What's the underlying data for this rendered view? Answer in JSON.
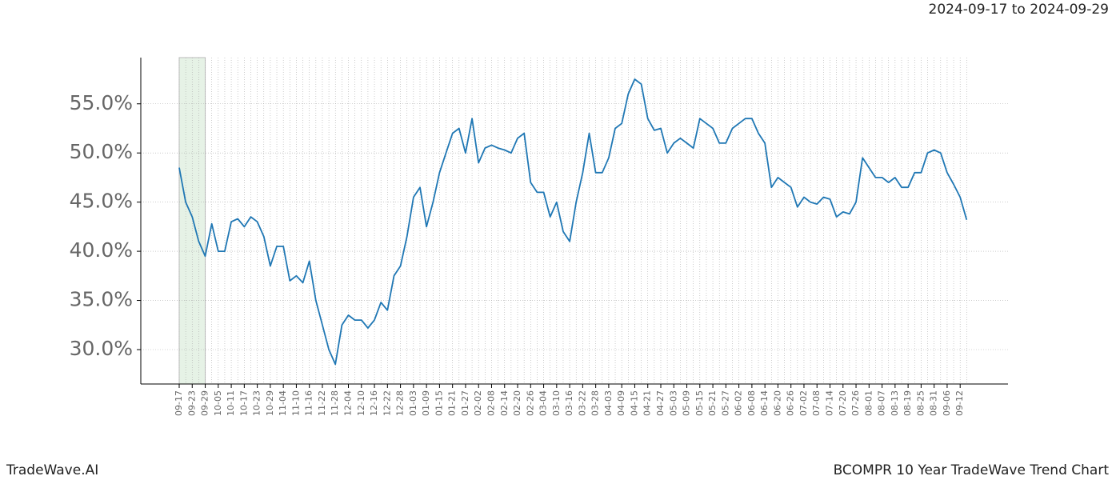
{
  "chart_data": {
    "type": "line",
    "title": "BCOMPR 10 Year TradeWave Trend Chart",
    "subtitle": "2024-09-17 to 2024-09-29",
    "brand": "TradeWave.AI",
    "categories": [
      "09-17",
      null,
      "09-23",
      null,
      "09-29",
      null,
      "10-05",
      null,
      "10-11",
      null,
      "10-17",
      null,
      "10-23",
      null,
      "10-29",
      null,
      "11-04",
      null,
      "11-10",
      null,
      "11-16",
      null,
      "11-22",
      null,
      "11-28",
      null,
      "12-04",
      null,
      "12-10",
      null,
      "12-16",
      null,
      "12-22",
      null,
      "12-28",
      null,
      "01-03",
      null,
      "01-09",
      null,
      "01-15",
      null,
      "01-21",
      null,
      "01-27",
      null,
      "02-02",
      null,
      "02-08",
      null,
      "02-14",
      null,
      "02-20",
      null,
      "02-26",
      null,
      "03-04",
      null,
      "03-10",
      null,
      "03-16",
      null,
      "03-22",
      null,
      "03-28",
      null,
      "04-03",
      null,
      "04-09",
      null,
      "04-15",
      null,
      "04-21",
      null,
      "04-27",
      null,
      "05-03",
      null,
      "05-09",
      null,
      "05-15",
      null,
      "05-21",
      null,
      "05-27",
      null,
      "06-02",
      null,
      "06-08",
      null,
      "06-14",
      null,
      "06-20",
      null,
      "06-26",
      null,
      "07-02",
      null,
      "07-08",
      null,
      "07-14",
      null,
      "07-20",
      null,
      "07-26",
      null,
      "08-01",
      null,
      "08-07",
      null,
      "08-13",
      null,
      "08-19",
      null,
      "08-25",
      null,
      "08-31",
      null,
      "09-06",
      null,
      "09-12",
      null
    ],
    "values": [
      48.5,
      45,
      43.5,
      41,
      39.5,
      42.8,
      40,
      40,
      43,
      43.3,
      42.5,
      43.5,
      43,
      41.5,
      38.5,
      40.5,
      40.5,
      37,
      37.5,
      36.8,
      39,
      35,
      32.5,
      30,
      28.5,
      32.5,
      33.5,
      33,
      33,
      32.2,
      33,
      34.8,
      34,
      37.5,
      38.5,
      41.5,
      45.5,
      46.5,
      42.5,
      45,
      48,
      50,
      52,
      52.5,
      50,
      53.5,
      49,
      50.5,
      50.8,
      50.5,
      50.3,
      50,
      51.5,
      52,
      47,
      46,
      46,
      43.5,
      45,
      42,
      41,
      45,
      48,
      52,
      48,
      48,
      49.5,
      52.5,
      53,
      56,
      57.5,
      57,
      53.5,
      52.3,
      52.5,
      50,
      51,
      51.5,
      51,
      50.5,
      53.5,
      53,
      52.5,
      51,
      51,
      52.5,
      53,
      53.5,
      53.5,
      52,
      51,
      46.5,
      47.5,
      47,
      46.5,
      44.5,
      45.5,
      45,
      44.8,
      45.5,
      45.3,
      43.5,
      44,
      43.8,
      45,
      49.5,
      48.5,
      47.5,
      47.5,
      47,
      47.5,
      46.5,
      46.5,
      48,
      48,
      50,
      50.3,
      50,
      48,
      46.8,
      45.5,
      43.2
    ],
    "color": "#1f77b4",
    "highlight": [
      "09-17",
      "09-29"
    ],
    "highlight_color": "#e6f2e6",
    "ylim": [
      26.5,
      59.7
    ],
    "yticks": [
      {
        "value": 30,
        "label": "30.0%"
      },
      {
        "value": 35,
        "label": "35.0%"
      },
      {
        "value": 40,
        "label": "40.0%"
      },
      {
        "value": 45,
        "label": "45.0%"
      },
      {
        "value": 50,
        "label": "50.0%"
      },
      {
        "value": 55,
        "label": "55.0%"
      }
    ],
    "grid": true
  }
}
